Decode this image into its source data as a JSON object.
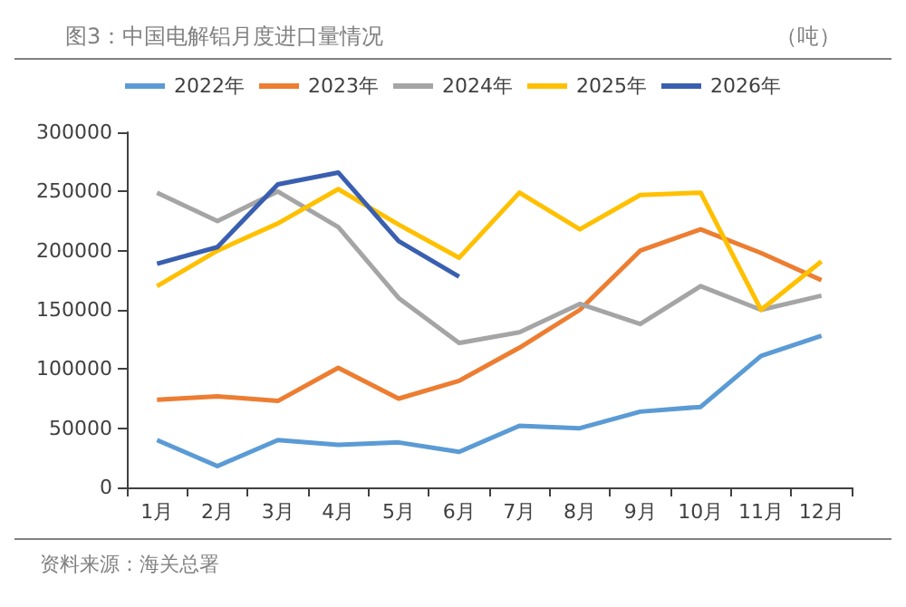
{
  "chart_data": {
    "type": "line",
    "title": "图3：中国电解铝月度进口量情况",
    "ylabel": "（吨）",
    "annotations": [
      "资料来源：海关总署"
    ],
    "categories": [
      "1月",
      "2月",
      "3月",
      "4月",
      "5月",
      "6月",
      "7月",
      "8月",
      "9月",
      "10月",
      "11月",
      "12月"
    ],
    "series": [
      {
        "name": "2022年",
        "color": "#5b9bd5",
        "values": [
          40000,
          18000,
          40000,
          36000,
          38000,
          30000,
          52000,
          50000,
          64000,
          68000,
          111000,
          128000
        ]
      },
      {
        "name": "2023年",
        "color": "#ed7d31",
        "values": [
          74000,
          77000,
          73000,
          101000,
          75000,
          90000,
          118000,
          150000,
          200000,
          218000,
          198000,
          175000
        ]
      },
      {
        "name": "2024年",
        "color": "#a5a5a5",
        "values": [
          249000,
          225000,
          250000,
          220000,
          160000,
          122000,
          131000,
          155000,
          138000,
          170000,
          150000,
          162000
        ]
      },
      {
        "name": "2025年",
        "color": "#ffc000",
        "values": [
          170000,
          200000,
          223000,
          252000,
          222000,
          194000,
          249000,
          218000,
          247000,
          249000,
          150000,
          191000
        ]
      },
      {
        "name": "2026年",
        "color": "#3a5fb0",
        "values": [
          189000,
          203000,
          256000,
          266000,
          208000,
          178000,
          null,
          null,
          null,
          null,
          null,
          null
        ]
      }
    ],
    "ylim": [
      0,
      300000
    ],
    "yticks": [
      0,
      50000,
      100000,
      150000,
      200000,
      250000,
      300000
    ],
    "grid": false,
    "legend": "top",
    "marker": "none",
    "line_style": "solid"
  }
}
